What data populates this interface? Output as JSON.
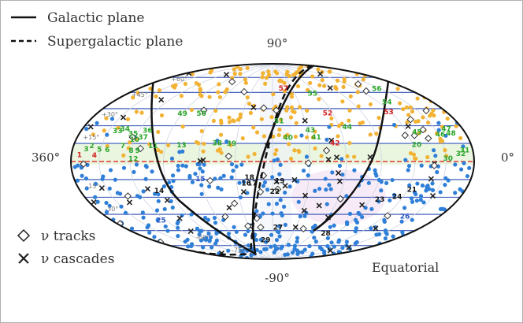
{
  "chart_data": {
    "type": "scatter",
    "title": "",
    "projection": "Hammer-Aitoff, equatorial coordinates",
    "coordinate_system_label": "Equatorial",
    "ra_labels": {
      "left": "360°",
      "right": "0°"
    },
    "dec_labels": {
      "top": "90°",
      "bottom": "-90°"
    },
    "dec_ticks": [
      "+60°",
      "+45°",
      "+30°",
      "+15°",
      "-15°",
      "-30°",
      "-60°",
      "-75°"
    ],
    "grid": true,
    "legend": {
      "placement": "top-left",
      "lines": [
        {
          "name": "Galactic plane",
          "style": "solid"
        },
        {
          "name": "Supergalactic plane",
          "style": "dashed"
        }
      ],
      "markers": [
        {
          "name": "ν tracks",
          "marker": "diamond"
        },
        {
          "name": "ν cascades",
          "marker": "cross"
        }
      ]
    },
    "colors": {
      "north_sources": "#f2b233",
      "south_sources": "#2f7fd8",
      "grid_lines": "#2f4fb3",
      "equator_line": "#e03a2e",
      "outline": "#111111",
      "number_green": "#2aa52a",
      "number_red": "#d62020",
      "number_black": "#111111",
      "number_blue": "#2b57c4"
    },
    "numbered_sources": [
      {
        "n": "1",
        "color": "red",
        "ra": 351,
        "dec": 4
      },
      {
        "n": "2",
        "color": "green",
        "ra": 340,
        "dec": 10
      },
      {
        "n": "3",
        "color": "green",
        "ra": 345,
        "dec": 8
      },
      {
        "n": "4",
        "color": "red",
        "ra": 335,
        "dec": 4
      },
      {
        "n": "5",
        "color": "green",
        "ra": 331,
        "dec": 8
      },
      {
        "n": "6",
        "color": "green",
        "ra": 323,
        "dec": 8
      },
      {
        "n": "7",
        "color": "green",
        "ra": 309,
        "dec": 11
      },
      {
        "n": "8",
        "color": "green",
        "ra": 300,
        "dec": 8
      },
      {
        "n": "9",
        "color": "green",
        "ra": 294,
        "dec": 8
      },
      {
        "n": "10",
        "color": "green",
        "ra": 300,
        "dec": 16
      },
      {
        "n": "11",
        "color": "green",
        "ra": 281,
        "dec": 12
      },
      {
        "n": "12",
        "color": "green",
        "ra": 297,
        "dec": 2
      },
      {
        "n": "13",
        "color": "green",
        "ra": 256,
        "dec": 13
      },
      {
        "n": "14",
        "color": "black",
        "ra": 280,
        "dec": -22
      },
      {
        "n": "15",
        "color": "blue",
        "ra": 240,
        "dec": -14
      },
      {
        "n": "16",
        "color": "black",
        "ra": 202,
        "dec": -18
      },
      {
        "n": "17",
        "color": "black",
        "ra": 197,
        "dec": -18
      },
      {
        "n": "18",
        "color": "black",
        "ra": 199,
        "dec": -13
      },
      {
        "n": "19",
        "color": "black",
        "ra": 174,
        "dec": -16
      },
      {
        "n": "20",
        "color": "green",
        "ra": 56,
        "dec": 12
      },
      {
        "n": "21",
        "color": "black",
        "ra": 56,
        "dec": -20
      },
      {
        "n": "22",
        "color": "black",
        "ra": 178,
        "dec": -25
      },
      {
        "n": "23",
        "color": "black",
        "ra": 81,
        "dec": -29
      },
      {
        "n": "24",
        "color": "black",
        "ra": 66,
        "dec": -26
      },
      {
        "n": "25",
        "color": "blue",
        "ra": 305,
        "dec": -44
      },
      {
        "n": "26",
        "color": "blue",
        "ra": 38,
        "dec": -39
      },
      {
        "n": "27",
        "color": "black",
        "ra": 173,
        "dec": -57
      },
      {
        "n": "28",
        "color": "black",
        "ra": 103,
        "dec": -60
      },
      {
        "n": "29",
        "color": "black",
        "ra": 193,
        "dec": -69
      },
      {
        "n": "30",
        "color": "green",
        "ra": 28,
        "dec": 2
      },
      {
        "n": "31",
        "color": "green",
        "ra": 9,
        "dec": 7
      },
      {
        "n": "32",
        "color": "green",
        "ra": 14,
        "dec": 5
      },
      {
        "n": "33",
        "color": "green",
        "ra": 321,
        "dec": 21
      },
      {
        "n": "34",
        "color": "green",
        "ra": 315,
        "dec": 23
      },
      {
        "n": "35",
        "color": "green",
        "ra": 304,
        "dec": 20
      },
      {
        "n": "36",
        "color": "green",
        "ra": 292,
        "dec": 23
      },
      {
        "n": "37",
        "color": "green",
        "ra": 293,
        "dec": 18
      },
      {
        "n": "38",
        "color": "green",
        "ra": 226,
        "dec": 15
      },
      {
        "n": "39",
        "color": "green",
        "ra": 214,
        "dec": 15
      },
      {
        "n": "40",
        "color": "green",
        "ra": 167,
        "dec": 20
      },
      {
        "n": "41",
        "color": "green",
        "ra": 143,
        "dec": 20
      },
      {
        "n": "42",
        "color": "red",
        "ra": 128,
        "dec": 15
      },
      {
        "n": "43",
        "color": "green",
        "ra": 147,
        "dec": 26
      },
      {
        "n": "44",
        "color": "green",
        "ra": 113,
        "dec": 28
      },
      {
        "n": "45",
        "color": "green",
        "ra": 50,
        "dec": 21
      },
      {
        "n": "46",
        "color": "green",
        "ra": 28,
        "dec": 18
      },
      {
        "n": "47",
        "color": "green",
        "ra": 18,
        "dec": 21
      },
      {
        "n": "48",
        "color": "green",
        "ra": 16,
        "dec": 18
      },
      {
        "n": "49",
        "color": "green",
        "ra": 270,
        "dec": 38
      },
      {
        "n": "50",
        "color": "green",
        "ra": 251,
        "dec": 39
      },
      {
        "n": "51",
        "color": "green",
        "ra": 174,
        "dec": 34
      },
      {
        "n": "52",
        "color": "red",
        "ra": 125,
        "dec": 40
      },
      {
        "n": "53",
        "color": "red",
        "ra": 62,
        "dec": 37
      },
      {
        "n": "54",
        "color": "green",
        "ra": 51,
        "dec": 44
      },
      {
        "n": "55",
        "color": "green",
        "ra": 126,
        "dec": 58
      },
      {
        "n": "56",
        "color": "green",
        "ra": 35,
        "dec": 54
      },
      {
        "n": "57",
        "color": "red",
        "ra": 163,
        "dec": 64
      }
    ]
  }
}
